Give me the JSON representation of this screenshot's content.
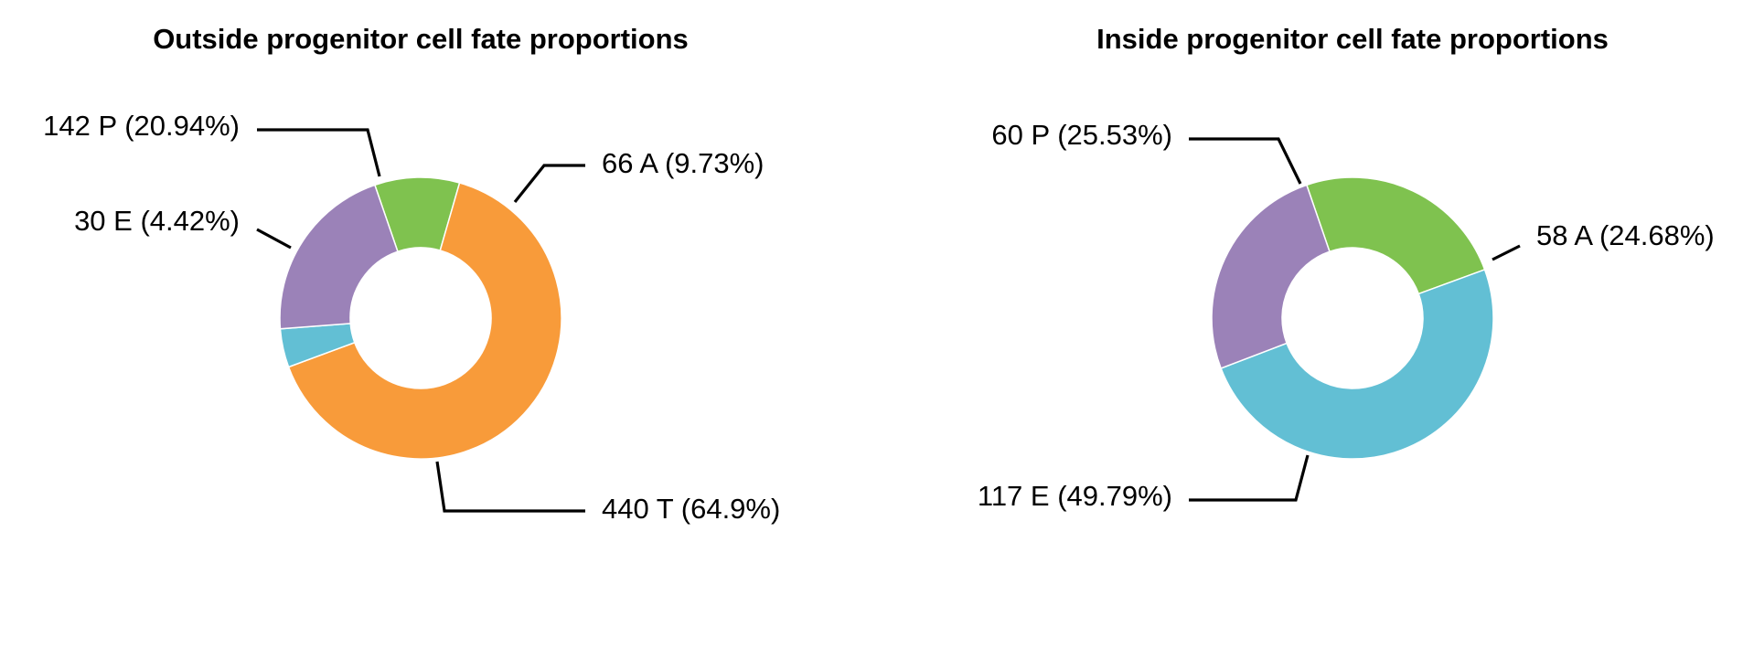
{
  "colors": {
    "A": "#7fc24f",
    "T": "#f89b3a",
    "E": "#62bfd4",
    "P": "#9b82b8"
  },
  "chart_data": [
    {
      "type": "pie",
      "title": "Outside progenitor cell fate proportions",
      "style": "donut",
      "slices": [
        {
          "category": "A",
          "count": 66,
          "percent": 9.73,
          "label": "66 A (9.73%)"
        },
        {
          "category": "T",
          "count": 440,
          "percent": 64.9,
          "label": "440 T (64.9%)"
        },
        {
          "category": "E",
          "count": 30,
          "percent": 4.42,
          "label": "30 E (4.42%)"
        },
        {
          "category": "P",
          "count": 142,
          "percent": 20.94,
          "label": "142 P (20.94%)"
        }
      ]
    },
    {
      "type": "pie",
      "title": "Inside progenitor cell fate proportions",
      "style": "donut",
      "slices": [
        {
          "category": "A",
          "count": 58,
          "percent": 24.68,
          "label": "58 A (24.68%)"
        },
        {
          "category": "E",
          "count": 117,
          "percent": 49.79,
          "label": "117 E (49.79%)"
        },
        {
          "category": "P",
          "count": 60,
          "percent": 25.53,
          "label": "60 P (25.53%)"
        }
      ]
    }
  ]
}
